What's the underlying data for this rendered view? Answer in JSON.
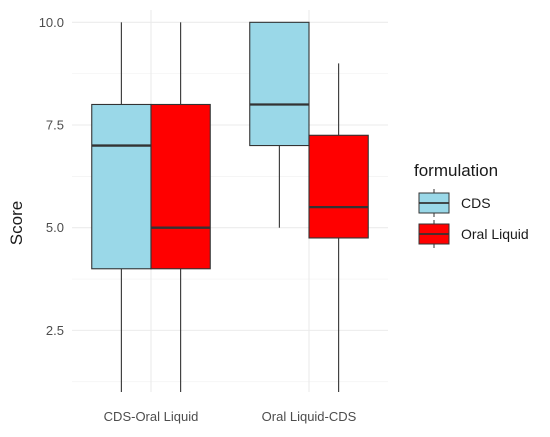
{
  "chart_data": {
    "type": "boxplot",
    "ylabel": "Score",
    "xlabel": "",
    "ylim": [
      1.0,
      10.3
    ],
    "yticks": [
      "2.5",
      "5.0",
      "7.5",
      "10.0"
    ],
    "ytick_values": [
      2.5,
      5.0,
      7.5,
      10.0
    ],
    "categories": [
      "CDS-Oral Liquid",
      "Oral Liquid-CDS"
    ],
    "grid": true,
    "legend_position": "right",
    "legend_title": "formulation",
    "series": [
      {
        "name": "CDS",
        "color": "#9ad8e8",
        "boxes": [
          {
            "min": 1.0,
            "q1": 4.0,
            "median": 7.0,
            "q3": 8.0,
            "max": 10.0
          },
          {
            "min": 5.0,
            "q1": 7.0,
            "median": 8.0,
            "q3": 10.0,
            "max": 10.0
          }
        ]
      },
      {
        "name": "Oral Liquid",
        "color": "#ff0000",
        "boxes": [
          {
            "min": 1.0,
            "q1": 4.0,
            "median": 5.0,
            "q3": 8.0,
            "max": 10.0
          },
          {
            "min": 1.0,
            "q1": 4.75,
            "median": 5.5,
            "q3": 7.25,
            "max": 9.0
          }
        ]
      }
    ]
  }
}
